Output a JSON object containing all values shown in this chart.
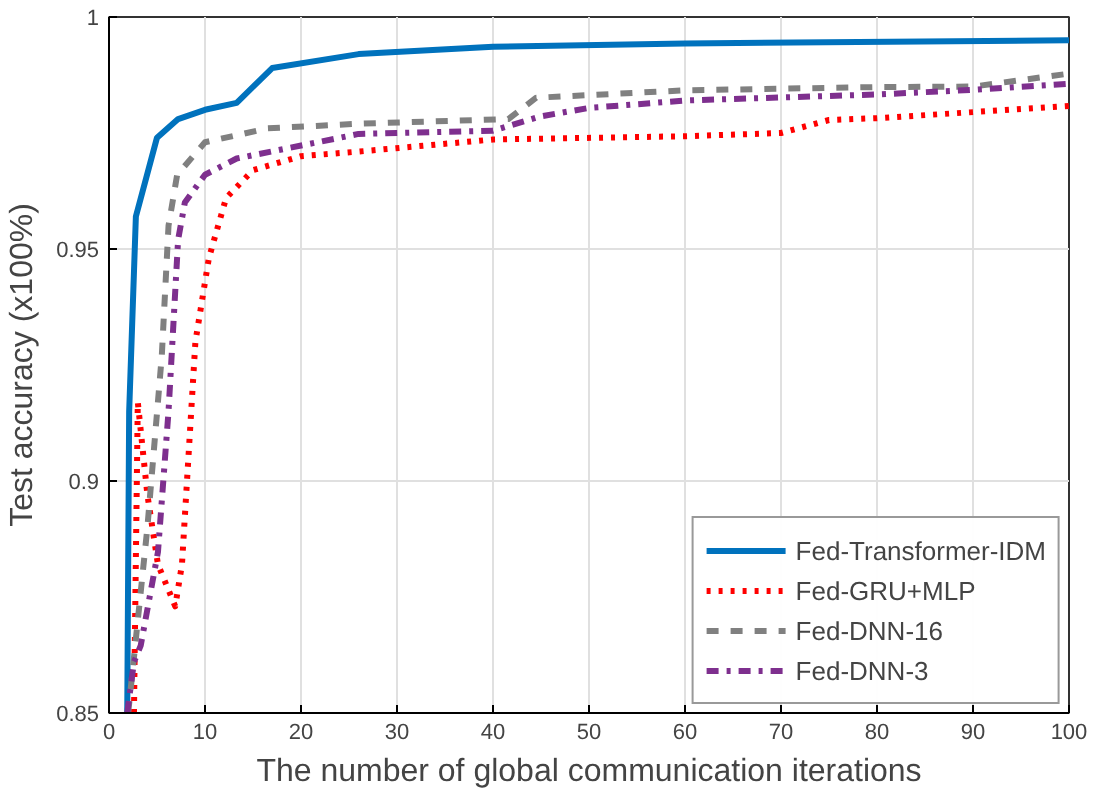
{
  "chart_data": {
    "type": "line",
    "xlabel": "The number of global communication iterations",
    "ylabel": "Test accuracy (x100%)",
    "xlim": [
      0,
      100
    ],
    "ylim": [
      0.85,
      1
    ],
    "xticks": [
      0,
      10,
      20,
      30,
      40,
      50,
      60,
      70,
      80,
      90,
      100
    ],
    "yticks": [
      {
        "value": 0.85,
        "label": "0.85"
      },
      {
        "value": 0.9,
        "label": "0.9"
      },
      {
        "value": 0.95,
        "label": "0.95"
      },
      {
        "value": 1,
        "label": "1"
      }
    ],
    "grid": true,
    "legend": "bottom right",
    "series": [
      {
        "name": "Fed-Transformer-IDM",
        "color": "#0072bd",
        "line_style": "solid",
        "x": [
          1.9,
          2.1,
          2.8,
          5,
          7.2,
          10,
          13.3,
          17,
          26,
          40,
          60,
          100
        ],
        "values": [
          0.85,
          0.915,
          0.957,
          0.974,
          0.978,
          0.98,
          0.9815,
          0.989,
          0.992,
          0.9936,
          0.9943,
          0.995
        ]
      },
      {
        "name": "Fed-GRU+MLP",
        "color": "#ff0000",
        "line_style": "dotted",
        "x": [
          2.6,
          3,
          4,
          5.1,
          6.9,
          7.6,
          9,
          10.4,
          12.2,
          15,
          20,
          26,
          40,
          60,
          70,
          75,
          80,
          100
        ],
        "values": [
          0.85,
          0.917,
          0.897,
          0.882,
          0.873,
          0.882,
          0.93,
          0.948,
          0.961,
          0.967,
          0.97,
          0.971,
          0.9736,
          0.9743,
          0.975,
          0.9778,
          0.9782,
          0.9808
        ]
      },
      {
        "name": "Fed-DNN-16",
        "color": "#808080",
        "line_style": "dashed",
        "x": [
          2,
          3,
          4,
          5.5,
          6.2,
          7.1,
          10,
          16.5,
          26,
          41.6,
          44.5,
          60,
          80,
          90,
          100
        ],
        "values": [
          0.85,
          0.87,
          0.89,
          0.927,
          0.955,
          0.966,
          0.973,
          0.976,
          0.977,
          0.978,
          0.9826,
          0.9842,
          0.9849,
          0.985,
          0.9878
        ]
      },
      {
        "name": "Fed-DNN-3",
        "color": "#7e2f8e",
        "line_style": "dashdot",
        "x": [
          1.9,
          2.6,
          3.3,
          5.1,
          6.2,
          7.2,
          7.9,
          10,
          13.3,
          26,
          40,
          45,
          50,
          60,
          80,
          90,
          100
        ],
        "values": [
          0.85,
          0.861,
          0.8645,
          0.8847,
          0.915,
          0.952,
          0.96,
          0.966,
          0.9695,
          0.9748,
          0.9755,
          0.9786,
          0.9804,
          0.982,
          0.9833,
          0.9843,
          0.9856
        ]
      }
    ]
  }
}
